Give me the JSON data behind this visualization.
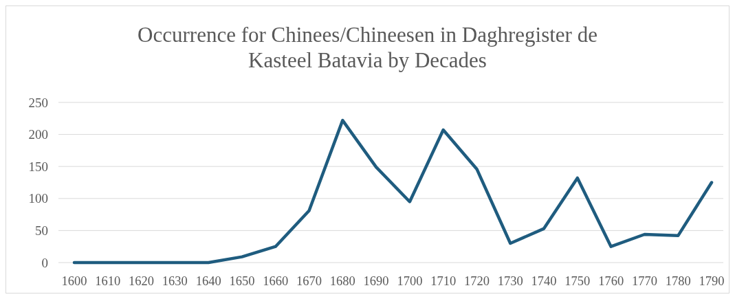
{
  "chart_data": {
    "type": "line",
    "title": "Occurrence for Chinees/Chineesen in Daghregister de Kasteel Batavia by Decades",
    "categories": [
      "1600",
      "1610",
      "1620",
      "1630",
      "1640",
      "1650",
      "1660",
      "1670",
      "1680",
      "1690",
      "1700",
      "1710",
      "1720",
      "1730",
      "1740",
      "1750",
      "1760",
      "1770",
      "1780",
      "1790"
    ],
    "series": [
      {
        "color": "#1f5c7f",
        "values": [
          0,
          0,
          0,
          0,
          0,
          9,
          25,
          81,
          222,
          149,
          95,
          207,
          146,
          30,
          53,
          132,
          25,
          44,
          42,
          125
        ]
      }
    ],
    "ylim": [
      0,
      250
    ],
    "yticks": [
      0,
      50,
      100,
      150,
      200,
      250
    ],
    "grid": "y",
    "marker": "none",
    "line_style": "solid"
  }
}
